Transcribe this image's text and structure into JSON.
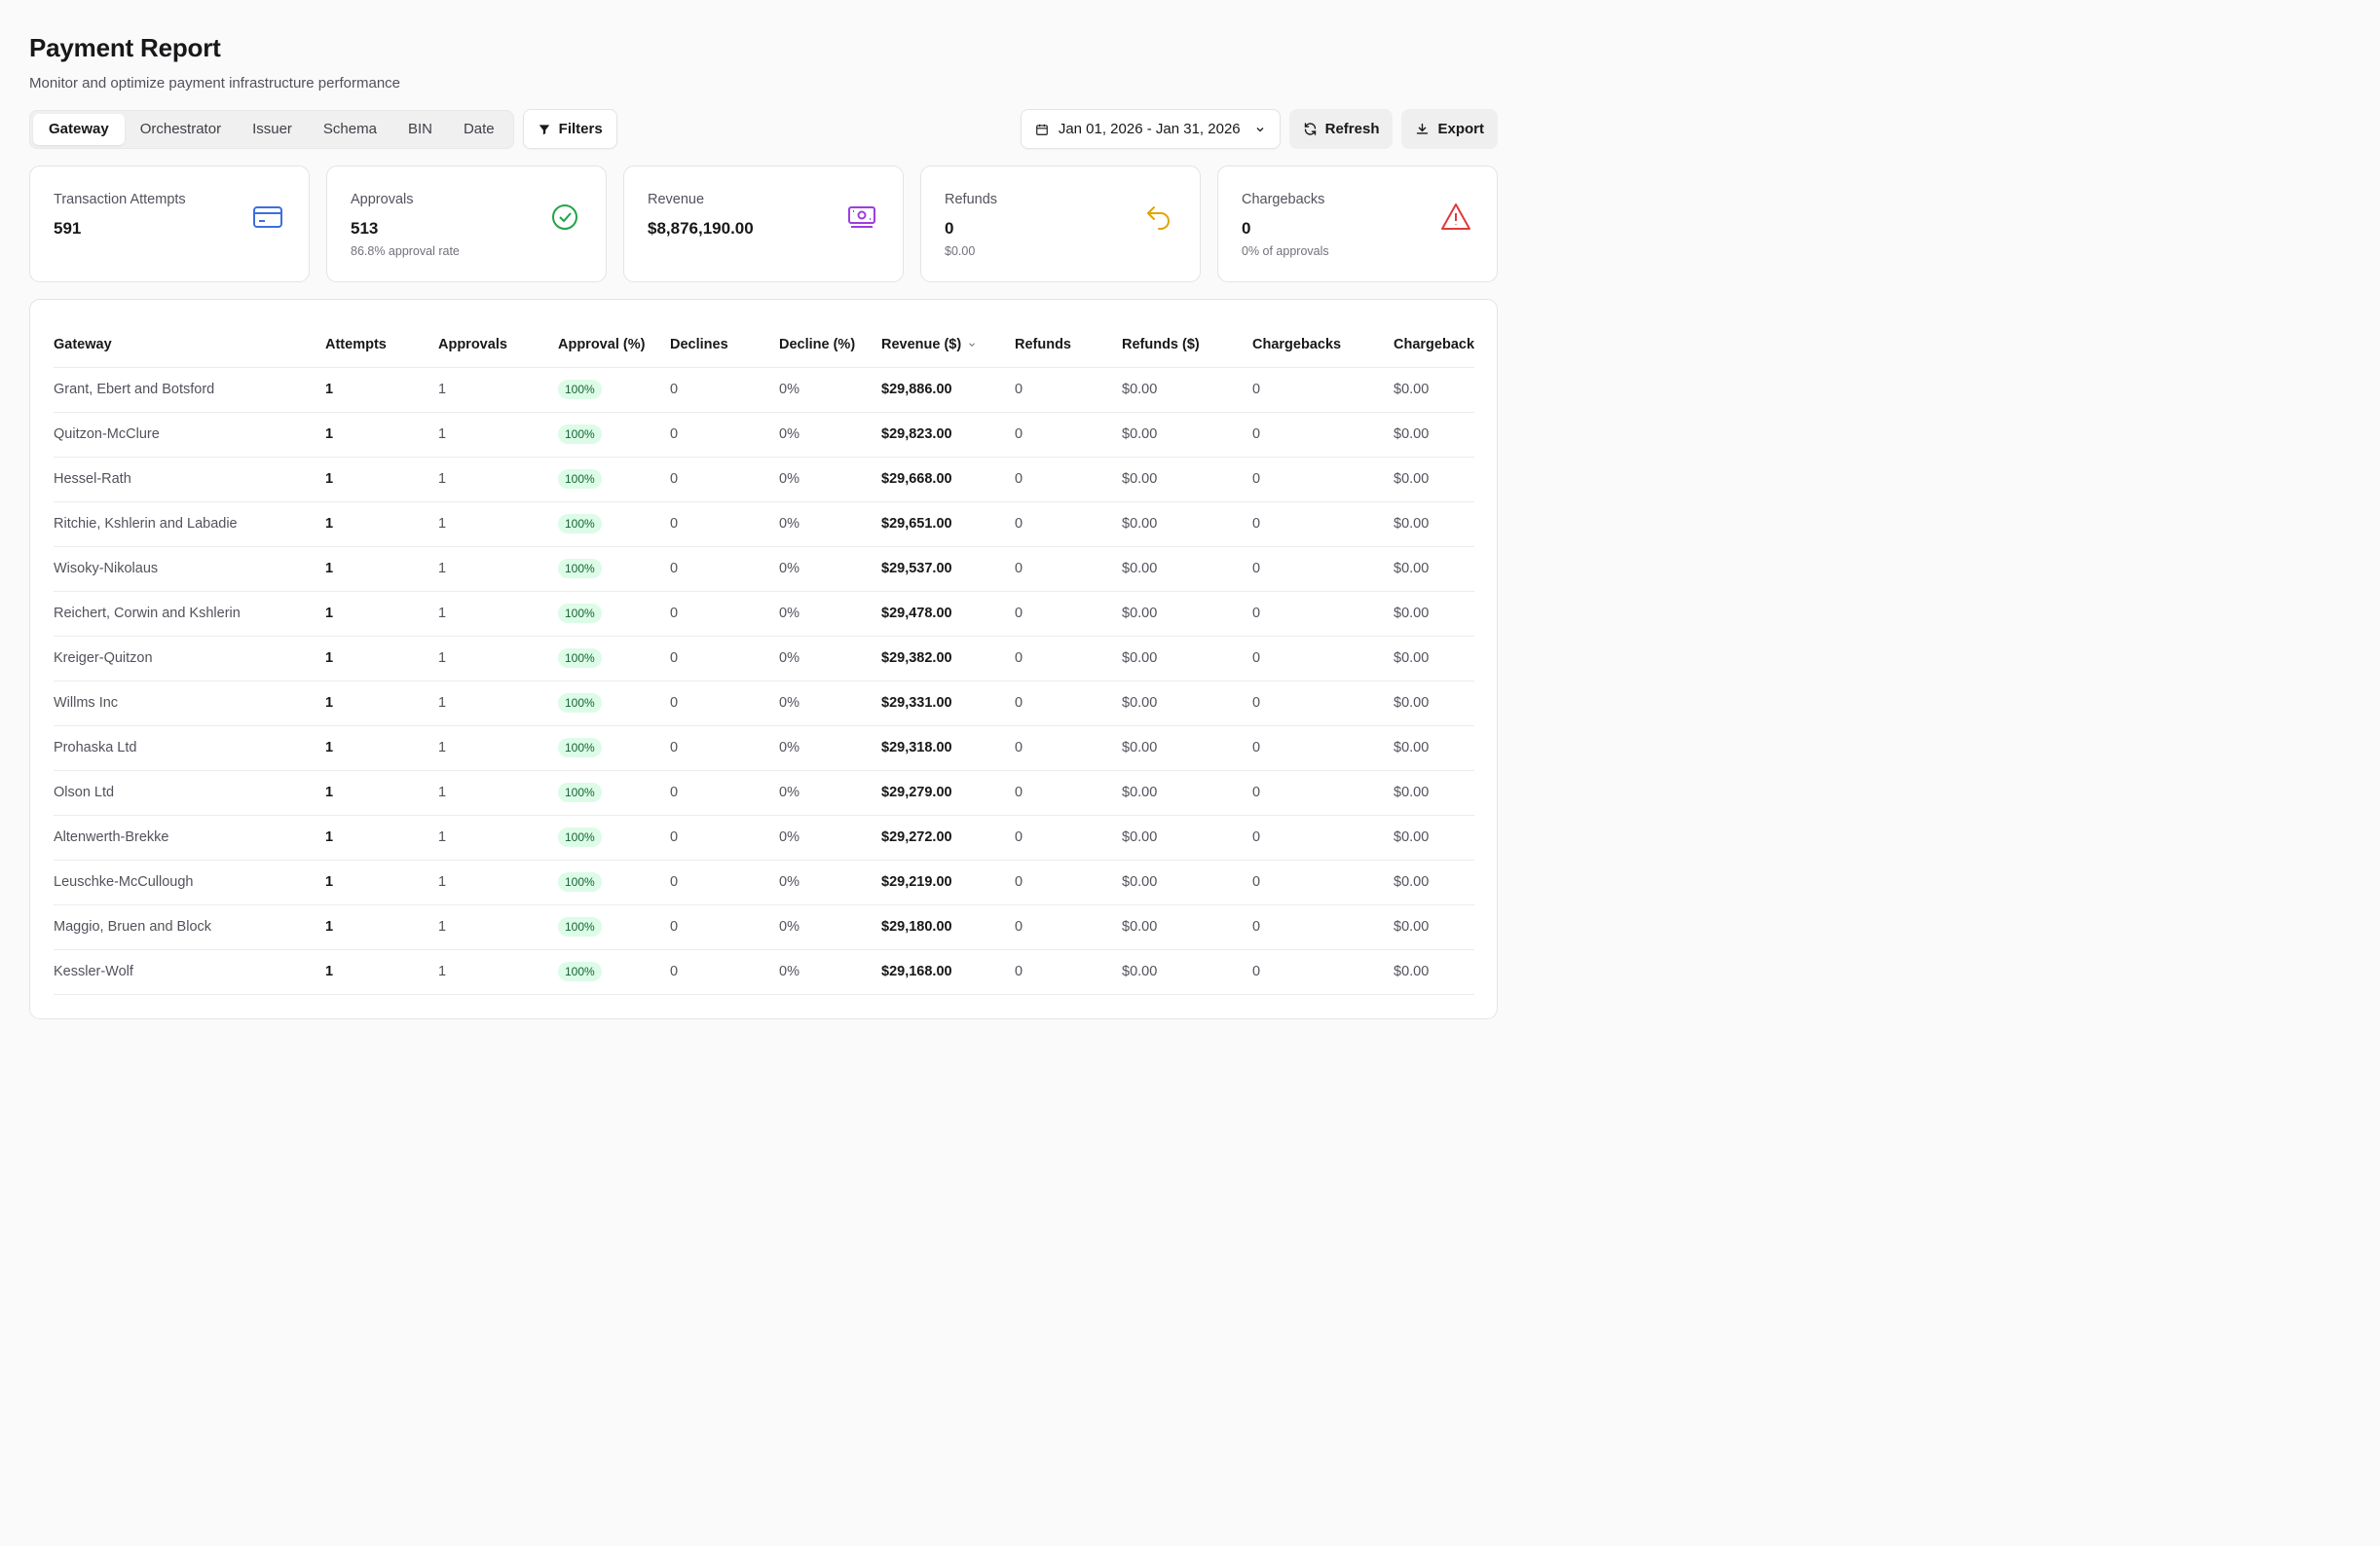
{
  "header": {
    "title": "Payment Report",
    "subtitle": "Monitor and optimize payment infrastructure performance"
  },
  "tabs": [
    {
      "label": "Gateway",
      "active": true
    },
    {
      "label": "Orchestrator"
    },
    {
      "label": "Issuer"
    },
    {
      "label": "Schema"
    },
    {
      "label": "BIN"
    },
    {
      "label": "Date"
    }
  ],
  "toolbar": {
    "filters_label": "Filters",
    "date_range": "Jan 01, 2026 - Jan 31, 2026",
    "refresh_label": "Refresh",
    "export_label": "Export"
  },
  "cards": [
    {
      "label": "Transaction Attempts",
      "value": "591",
      "sub": "",
      "icon": "credit-card-icon",
      "color": "#3b6fe0"
    },
    {
      "label": "Approvals",
      "value": "513",
      "sub": "86.8% approval rate",
      "icon": "check-circle-icon",
      "color": "#22a34a"
    },
    {
      "label": "Revenue",
      "value": "$8,876,190.00",
      "sub": "",
      "icon": "banknote-icon",
      "color": "#9b3de0"
    },
    {
      "label": "Refunds",
      "value": "0",
      "sub": "$0.00",
      "icon": "undo-arrow-icon",
      "color": "#e0a400"
    },
    {
      "label": "Chargebacks",
      "value": "0",
      "sub": "0% of approvals",
      "icon": "alert-triangle-icon",
      "color": "#e03a3a"
    }
  ],
  "table": {
    "columns": [
      "Gateway",
      "Attempts",
      "Approvals",
      "Approval (%)",
      "Declines",
      "Decline (%)",
      "Revenue ($)",
      "Refunds",
      "Refunds ($)",
      "Chargebacks",
      "Chargeback"
    ],
    "rows": [
      [
        "Grant, Ebert and Botsford",
        "1",
        "1",
        "100%",
        "0",
        "0%",
        "$29,886.00",
        "0",
        "$0.00",
        "0",
        "$0.00"
      ],
      [
        "Quitzon-McClure",
        "1",
        "1",
        "100%",
        "0",
        "0%",
        "$29,823.00",
        "0",
        "$0.00",
        "0",
        "$0.00"
      ],
      [
        "Hessel-Rath",
        "1",
        "1",
        "100%",
        "0",
        "0%",
        "$29,668.00",
        "0",
        "$0.00",
        "0",
        "$0.00"
      ],
      [
        "Ritchie, Kshlerin and Labadie",
        "1",
        "1",
        "100%",
        "0",
        "0%",
        "$29,651.00",
        "0",
        "$0.00",
        "0",
        "$0.00"
      ],
      [
        "Wisoky-Nikolaus",
        "1",
        "1",
        "100%",
        "0",
        "0%",
        "$29,537.00",
        "0",
        "$0.00",
        "0",
        "$0.00"
      ],
      [
        "Reichert, Corwin and Kshlerin",
        "1",
        "1",
        "100%",
        "0",
        "0%",
        "$29,478.00",
        "0",
        "$0.00",
        "0",
        "$0.00"
      ],
      [
        "Kreiger-Quitzon",
        "1",
        "1",
        "100%",
        "0",
        "0%",
        "$29,382.00",
        "0",
        "$0.00",
        "0",
        "$0.00"
      ],
      [
        "Willms Inc",
        "1",
        "1",
        "100%",
        "0",
        "0%",
        "$29,331.00",
        "0",
        "$0.00",
        "0",
        "$0.00"
      ],
      [
        "Prohaska Ltd",
        "1",
        "1",
        "100%",
        "0",
        "0%",
        "$29,318.00",
        "0",
        "$0.00",
        "0",
        "$0.00"
      ],
      [
        "Olson Ltd",
        "1",
        "1",
        "100%",
        "0",
        "0%",
        "$29,279.00",
        "0",
        "$0.00",
        "0",
        "$0.00"
      ],
      [
        "Altenwerth-Brekke",
        "1",
        "1",
        "100%",
        "0",
        "0%",
        "$29,272.00",
        "0",
        "$0.00",
        "0",
        "$0.00"
      ],
      [
        "Leuschke-McCullough",
        "1",
        "1",
        "100%",
        "0",
        "0%",
        "$29,219.00",
        "0",
        "$0.00",
        "0",
        "$0.00"
      ],
      [
        "Maggio, Bruen and Block",
        "1",
        "1",
        "100%",
        "0",
        "0%",
        "$29,180.00",
        "0",
        "$0.00",
        "0",
        "$0.00"
      ],
      [
        "Kessler-Wolf",
        "1",
        "1",
        "100%",
        "0",
        "0%",
        "$29,168.00",
        "0",
        "$0.00",
        "0",
        "$0.00"
      ]
    ]
  }
}
